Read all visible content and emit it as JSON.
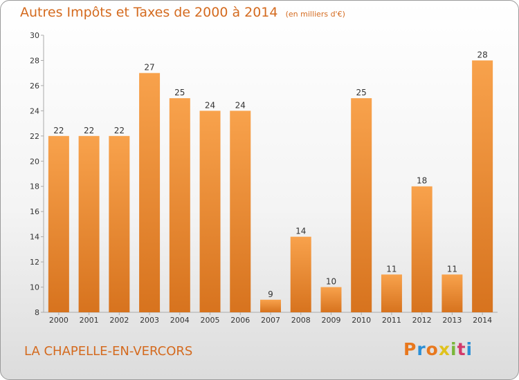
{
  "chart_data": {
    "type": "bar",
    "title": "Autres Impôts et Taxes de 2000 à 2014",
    "unit_label": "(en milliers d'€)",
    "categories": [
      "2000",
      "2001",
      "2002",
      "2003",
      "2004",
      "2005",
      "2006",
      "2007",
      "2008",
      "2009",
      "2010",
      "2011",
      "2012",
      "2013",
      "2014"
    ],
    "values": [
      22,
      22,
      22,
      27,
      25,
      24,
      24,
      9,
      14,
      10,
      25,
      11,
      18,
      11,
      28
    ],
    "ylim": [
      8,
      30
    ],
    "yticks": [
      8,
      10,
      12,
      14,
      16,
      18,
      20,
      22,
      24,
      26,
      28,
      30
    ],
    "grid": false,
    "bar_color_top": "#f8a24c",
    "bar_color_bottom": "#d7731e"
  },
  "footer": {
    "place_name": "LA CHAPELLE-EN-VERCORS",
    "brand": "Proxiti"
  },
  "colors": {
    "accent": "#d46a1e",
    "axis": "#aaaaaa",
    "text": "#333333"
  }
}
